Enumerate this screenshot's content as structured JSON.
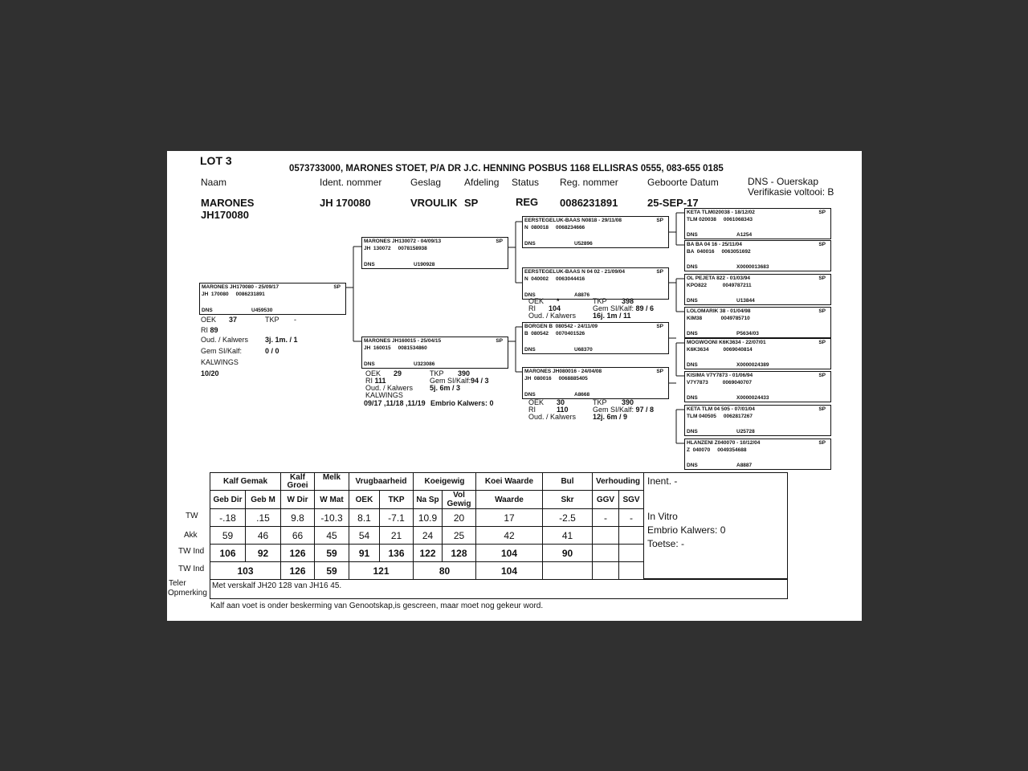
{
  "header": {
    "lot": "LOT 3",
    "owner_line": "0573733000, MARONES STOET, P/A DR J.C. HENNING POSBUS 1168 ELLISRAS 0555, 083-655 0185",
    "labels": {
      "naam": "Naam",
      "ident": "Ident. nommer",
      "geslag": "Geslag",
      "afdeling": "Afdeling",
      "status": "Status",
      "reg": "Reg. nommer",
      "geboorte": "Geboorte Datum",
      "dns": "DNS - Ouerskap",
      "verifikasie": "Verifikasie voltooi:"
    },
    "values": {
      "naam1": "MARONES",
      "naam2": "JH170080",
      "ident": "JH  170080",
      "geslag": "VROULIK",
      "afdeling": "SP",
      "status": "REG",
      "reg": "0086231891",
      "geboorte": "25-SEP-17",
      "verifikasie": "B"
    }
  },
  "pedigree": [
    {
      "role": "subject",
      "name": "MARONES JH170080 - 25/09/17",
      "ids": "JH  170080     0086231891",
      "sp": "SP",
      "dns_label": "DNS",
      "dns": "U459530"
    },
    {
      "role": "sire",
      "name": "MARONES JH130072 - 04/09/13",
      "ids": "JH  130072     0078158938",
      "sp": "SP",
      "dns_label": "DNS",
      "dns": "U190928"
    },
    {
      "role": "dam",
      "name": "MARONES JH160015 - 25/04/15",
      "ids": "JH  160015     0081534860",
      "sp": "SP",
      "dns_label": "DNS",
      "dns": "U323086"
    },
    {
      "role": "sire-sire",
      "name": "EERSTEGELUK-BAAS N0818 - 29/11/08",
      "ids": "N  080018     0068234666",
      "sp": "SP",
      "dns_label": "DNS",
      "dns": "U52896"
    },
    {
      "role": "sire-dam",
      "name": "EERSTEGELUK-BAAS N 04 02 - 21/09/04",
      "ids": "N  040002     0063044416",
      "sp": "SP",
      "dns_label": "DNS",
      "dns": "A8876"
    },
    {
      "role": "dam-sire",
      "name": "BORGEN B  080542 - 24/11/09",
      "ids": "B  080542     0070401526",
      "sp": "SP",
      "dns_label": "DNS",
      "dns": "U68370"
    },
    {
      "role": "dam-dam",
      "name": "MARONES JH080016 - 24/04/08",
      "ids": "JH  080016     0068885405",
      "sp": "SP",
      "dns_label": "DNS",
      "dns": "A8668"
    },
    {
      "role": "g3-1",
      "name": "KETA TLM020038 - 18/12/02",
      "ids": "TLM 020038     0061068343",
      "sp": "SP",
      "dns_label": "DNS",
      "dns": "A1254"
    },
    {
      "role": "g3-2",
      "name": "BA BA 04 16 - 25/11/04",
      "ids": "BA  040016     0063051692",
      "sp": "SP",
      "dns_label": "DNS",
      "dns": "X0000013683"
    },
    {
      "role": "g3-3",
      "name": "OL PEJETA 822 - 01/03/94",
      "ids": "KPO822           0049787211",
      "sp": "SP",
      "dns_label": "DNS",
      "dns": "U13844"
    },
    {
      "role": "g3-4",
      "name": "LOLOMARIK 38 - 01/04/98",
      "ids": "KIM38             0049785710",
      "sp": "SP",
      "dns_label": "DNS",
      "dns": "P5634/03"
    },
    {
      "role": "g3-5",
      "name": "MOGWOONI K6K3634 - 22/07/01",
      "ids": "K6K3634          0069040814",
      "sp": "SP",
      "dns_label": "DNS",
      "dns": "X0000024389"
    },
    {
      "role": "g3-6",
      "name": "KISIMA V7Y7873 - 01/06/94",
      "ids": "V7Y7873          0069040707",
      "sp": "SP",
      "dns_label": "DNS",
      "dns": "X0000024433"
    },
    {
      "role": "g3-7",
      "name": "KETA TLM 04 505 - 07/01/04",
      "ids": "TLM 040505     0062817267",
      "sp": "SP",
      "dns_label": "DNS",
      "dns": "U25728"
    },
    {
      "role": "g3-8",
      "name": "HLANZENI Z040070 - 10/12/04",
      "ids": "Z  040070     0049354688",
      "sp": "SP",
      "dns_label": "DNS",
      "dns": "A8887"
    }
  ],
  "stats": {
    "subject": {
      "oek_l": "OEK",
      "oek": "37",
      "tkp_l": "TKP",
      "tkp": "-",
      "ri_l": "RI",
      "ri": "89",
      "oud_l": "Oud. / Kalwers",
      "oud": "3j. 1m.  / 1",
      "gem_l": "Gem SI/Kalf:",
      "gem": "0 / 0",
      "kalwings_l": "KALWINGS",
      "kalwings": "10/20"
    },
    "dam": {
      "oek_l": "OEK",
      "oek": "29",
      "tkp_l": "TKP",
      "tkp": "390",
      "ri_l": "RI",
      "ri": "111",
      "gem_l": "Gem SI/Kalf:",
      "gem": "94 / 3",
      "oud_l": "Oud. / Kalwers",
      "oud": "5j. 6m  / 3",
      "kalwings_l": "KALWINGS",
      "kalwings": "09/17 ,11/18 ,11/19",
      "embrio": "Embrio Kalwers: 0"
    },
    "sire_dam": {
      "oek_l": "OEK",
      "oek": "*",
      "tkp_l": "TKP",
      "tkp": "398",
      "ri_l": "RI",
      "ri": "104",
      "gem_l": "Gem SI/Kalf:",
      "gem": "89 / 6",
      "oud_l": "Oud. / Kalwers",
      "oud": "16j. 1m  / 11"
    },
    "dam_dam": {
      "oek_l": "OEK",
      "oek": "30",
      "tkp_l": "TKP",
      "tkp": "390",
      "ri_l": "RI",
      "ri": "110",
      "gem_l": "Gem SI/Kalf:",
      "gem": "97 / 8",
      "oud_l": "Oud. / Kalwers",
      "oud": "12j. 6m  / 9"
    }
  },
  "evaluation": {
    "groups": [
      "Kalf Gemak",
      "Kalf Groei",
      "Melk",
      "Vrugbaarheid",
      "Koeigewig",
      "Koei Waarde",
      "Bul",
      "Verhouding"
    ],
    "columns": [
      "Geb Dir",
      "Geb M",
      "W Dir",
      "W Mat",
      "OEK",
      "TKP",
      "Na Sp",
      "Vol Gewig",
      "Waarde",
      "Skr",
      "GGV",
      "SGV"
    ],
    "row_labels": [
      "TW",
      "Akk",
      "TW Ind",
      "TW Ind"
    ],
    "tw": [
      "-.18",
      ".15",
      "9.8",
      "-10.3",
      "8.1",
      "-7.1",
      "10.9",
      "20",
      "17",
      "-2.5",
      "-",
      "-"
    ],
    "akk": [
      "59",
      "46",
      "66",
      "45",
      "54",
      "21",
      "24",
      "25",
      "42",
      "41",
      "",
      ""
    ],
    "tw_ind": [
      "106",
      "92",
      "126",
      "59",
      "91",
      "136",
      "122",
      "128",
      "104",
      "90",
      "",
      ""
    ],
    "tw_ind_group": [
      "103",
      "126",
      "59",
      "121",
      "80",
      "104",
      "",
      "",
      ""
    ]
  },
  "side_panel": {
    "inent": "Inent. -",
    "in_vitro": "In Vitro",
    "embrio": "Embrio Kalwers:   0",
    "toetse": "Toetse: -"
  },
  "remarks": {
    "label1": "Teler",
    "label2": "Opmerking",
    "text": "Met verskalf JH20 128 van JH16 45.",
    "footer": "Kalf aan voet  is onder beskerming van Genootskap,is gescreen, maar moet nog gekeur word."
  }
}
